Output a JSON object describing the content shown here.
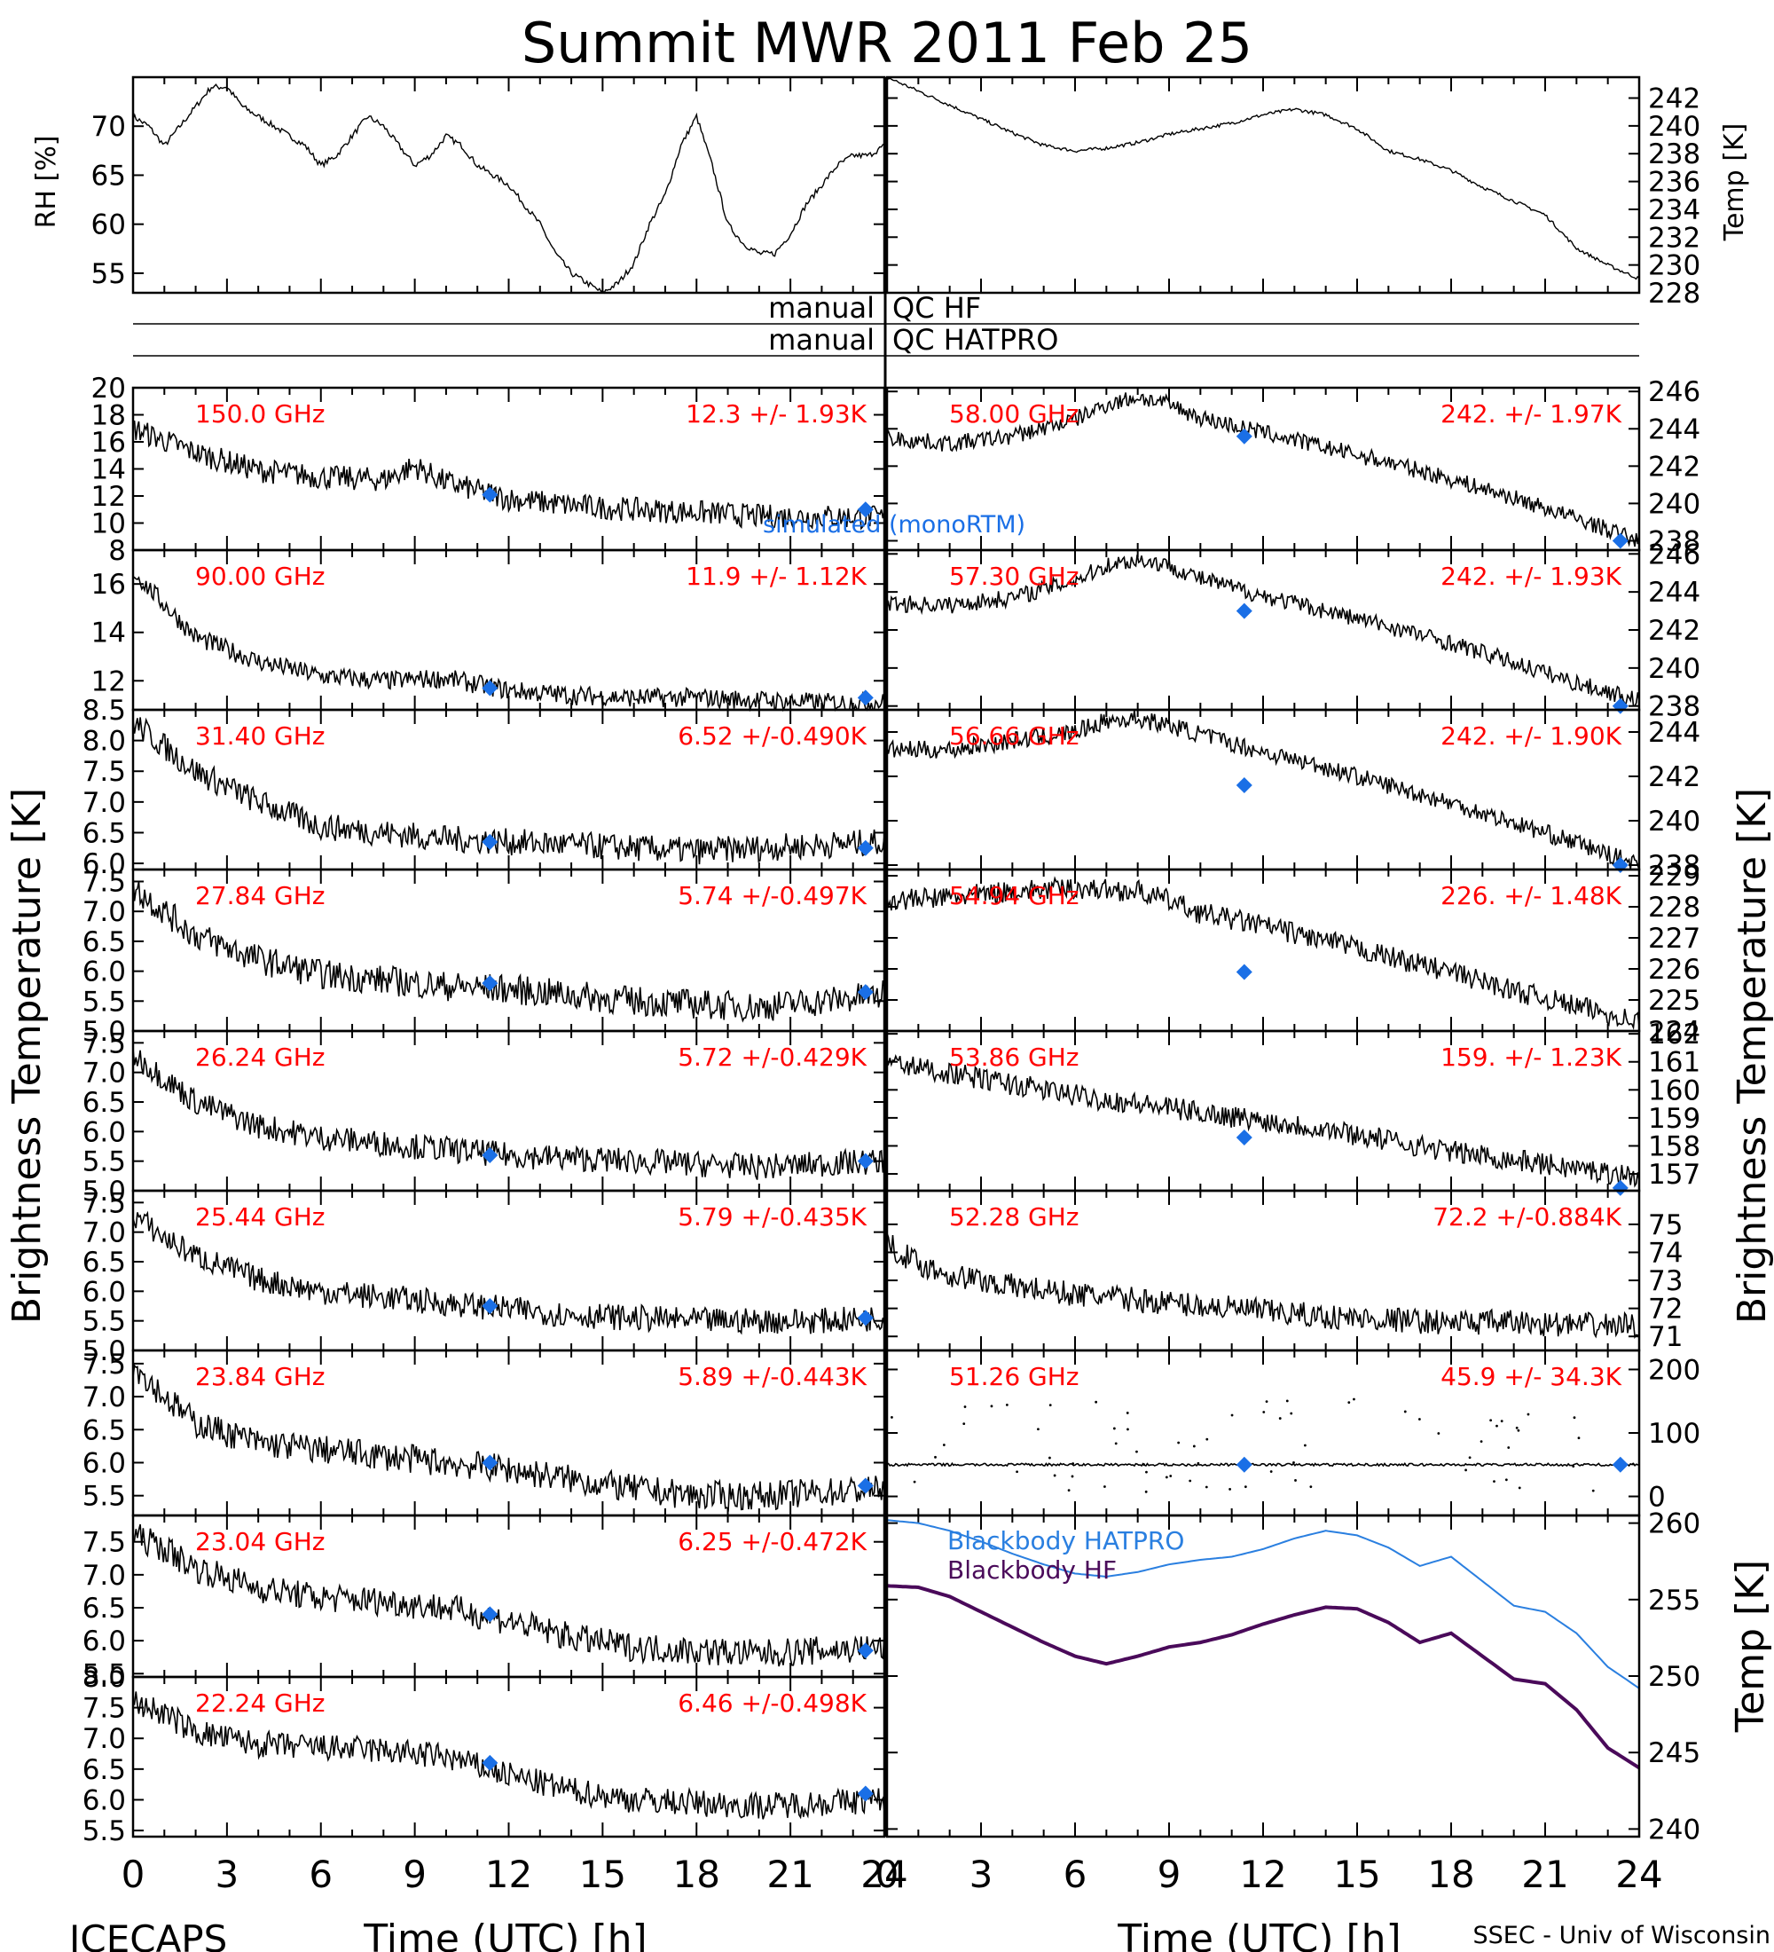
{
  "title": "Summit MWR 2011 Feb 25",
  "footer": {
    "left": "ICECAPS",
    "right": "SSEC - Univ of Wisconsin",
    "xlabel": "Time (UTC) [h]"
  },
  "axis_labels": {
    "rh": "RH [%]",
    "temp": "Temp [K]",
    "bt_left": "Brightness Temperature [K]",
    "bt_right": "Brightness Temperature [K]",
    "bb_temp": "Temp [K]"
  },
  "qc": {
    "hf_left": "manual",
    "hf_right": "QC HF",
    "hatpro_left": "manual",
    "hatpro_right": "QC HATPRO"
  },
  "colors": {
    "label": "#ff0000",
    "marker": "#1a6fe6",
    "hatpro": "#2a7fe0",
    "hf": "#4a0a5a",
    "data": "#000000"
  },
  "chart_data": [
    {
      "type": "line",
      "panel": "rh",
      "series_name": "RH",
      "xlim": [
        0,
        24
      ],
      "ylim": [
        53,
        75
      ],
      "yticks": [
        55,
        60,
        65,
        70
      ],
      "x": [
        0,
        0.5,
        1,
        1.5,
        2,
        2.5,
        3,
        3.5,
        4,
        4.5,
        5,
        5.5,
        6,
        6.5,
        7,
        7.5,
        8,
        8.5,
        9,
        9.5,
        10,
        10.5,
        11,
        11.5,
        12,
        12.5,
        13,
        13.5,
        14,
        14.5,
        15,
        15.5,
        16,
        16.5,
        17,
        17.5,
        18,
        18.5,
        19,
        19.5,
        20,
        20.5,
        21,
        21.5,
        22,
        22.5,
        23,
        23.5,
        24
      ],
      "y": [
        71,
        70,
        68,
        70,
        72,
        74,
        74,
        72,
        71,
        70,
        69,
        68,
        66,
        67,
        69,
        71,
        70,
        68,
        66,
        67,
        69,
        68,
        66,
        65,
        64,
        62,
        60,
        57,
        55,
        54,
        53,
        54,
        56,
        60,
        63,
        68,
        71,
        66,
        60,
        58,
        57,
        57,
        59,
        62,
        64,
        66,
        67,
        67,
        68
      ]
    },
    {
      "type": "line",
      "panel": "temp",
      "series_name": "Temp",
      "xlim": [
        0,
        24
      ],
      "ylim": [
        228,
        243.5
      ],
      "yticks": [
        228,
        230,
        232,
        234,
        236,
        238,
        240,
        242
      ],
      "x": [
        0,
        1,
        2,
        3,
        4,
        5,
        6,
        7,
        8,
        9,
        10,
        11,
        12,
        13,
        14,
        15,
        16,
        17,
        18,
        19,
        20,
        21,
        22,
        23,
        24
      ],
      "y": [
        243.5,
        242.5,
        241.5,
        240.5,
        239.5,
        238.6,
        238.2,
        238.4,
        238.8,
        239.4,
        239.8,
        240.2,
        240.8,
        241.2,
        240.8,
        239.8,
        238.2,
        237.6,
        236.8,
        235.6,
        234.6,
        233.6,
        231.2,
        230.0,
        229.0
      ]
    },
    {
      "type": "line",
      "panel": "bt",
      "column": "left",
      "freq": "150.0 GHz",
      "stats": "12.3 +/- 1.93K",
      "ylim": [
        8,
        20
      ],
      "yticks": [
        8,
        10,
        12,
        14,
        16,
        18,
        20
      ],
      "ytick_decimals": 0,
      "x": [
        0,
        2,
        4,
        6,
        8,
        9,
        10,
        12,
        14,
        16,
        18,
        20,
        22,
        24
      ],
      "y": [
        17,
        15.2,
        13.9,
        13.4,
        13.2,
        14.2,
        13,
        11.8,
        11.3,
        11.0,
        10.8,
        10.5,
        10.5,
        10.4
      ],
      "noise": 0.9,
      "markers": [
        [
          11.4,
          12.1
        ],
        [
          23.4,
          11.0
        ]
      ]
    },
    {
      "type": "line",
      "panel": "bt",
      "column": "left",
      "freq": "90.00 GHz",
      "stats": "11.9 +/- 1.12K",
      "ylim": [
        10.8,
        17.4
      ],
      "yticks": [
        12,
        14,
        16
      ],
      "ytick_decimals": 0,
      "x": [
        0,
        2,
        4,
        6,
        8,
        10,
        12,
        14,
        16,
        18,
        20,
        22,
        24
      ],
      "y": [
        16.5,
        13.8,
        12.8,
        12.2,
        12.0,
        12.1,
        11.6,
        11.4,
        11.3,
        11.3,
        11.2,
        11.1,
        11.1
      ],
      "noise": 0.4,
      "markers": [
        [
          11.4,
          11.7
        ],
        [
          23.4,
          11.3
        ]
      ]
    },
    {
      "type": "line",
      "panel": "bt",
      "column": "left",
      "freq": "31.40 GHz",
      "stats": "6.52 +/-0.490K",
      "ylim": [
        5.9,
        8.5
      ],
      "yticks": [
        6,
        6.5,
        7,
        7.5,
        8,
        8.5
      ],
      "ytick_decimals": 1,
      "x": [
        0,
        1,
        2,
        4,
        6,
        8,
        10,
        12,
        14,
        16,
        18,
        20,
        22,
        24
      ],
      "y": [
        8.3,
        7.9,
        7.5,
        7.0,
        6.6,
        6.5,
        6.4,
        6.35,
        6.3,
        6.25,
        6.2,
        6.25,
        6.3,
        6.35
      ],
      "noise": 0.22,
      "markers": [
        [
          11.4,
          6.35
        ],
        [
          23.4,
          6.25
        ]
      ]
    },
    {
      "type": "line",
      "panel": "bt",
      "column": "left",
      "freq": "27.84 GHz",
      "stats": "5.74 +/-0.497K",
      "ylim": [
        5.0,
        7.7
      ],
      "yticks": [
        5,
        5.5,
        6,
        6.5,
        7,
        7.5
      ],
      "ytick_decimals": 1,
      "x": [
        0,
        1,
        2,
        4,
        6,
        8,
        10,
        12,
        14,
        16,
        18,
        20,
        22,
        24
      ],
      "y": [
        7.4,
        7.0,
        6.6,
        6.2,
        5.95,
        5.85,
        5.75,
        5.7,
        5.6,
        5.5,
        5.45,
        5.4,
        5.5,
        5.6
      ],
      "noise": 0.25,
      "markers": [
        [
          11.4,
          5.8
        ],
        [
          23.4,
          5.65
        ]
      ]
    },
    {
      "type": "line",
      "panel": "bt",
      "column": "left",
      "freq": "26.24 GHz",
      "stats": "5.72 +/-0.429K",
      "ylim": [
        5.0,
        7.7
      ],
      "yticks": [
        5,
        5.5,
        6,
        6.5,
        7,
        7.5
      ],
      "ytick_decimals": 1,
      "x": [
        0,
        1,
        2,
        4,
        6,
        8,
        10,
        12,
        14,
        16,
        18,
        20,
        22,
        24
      ],
      "y": [
        7.3,
        6.9,
        6.5,
        6.1,
        5.9,
        5.8,
        5.7,
        5.6,
        5.55,
        5.5,
        5.45,
        5.4,
        5.45,
        5.5
      ],
      "noise": 0.22,
      "markers": [
        [
          11.4,
          5.6
        ],
        [
          23.4,
          5.5
        ]
      ]
    },
    {
      "type": "line",
      "panel": "bt",
      "column": "left",
      "freq": "25.44 GHz",
      "stats": "5.79 +/-0.435K",
      "ylim": [
        5.0,
        7.7
      ],
      "yticks": [
        5,
        5.5,
        6,
        6.5,
        7,
        7.5
      ],
      "ytick_decimals": 1,
      "x": [
        0,
        1,
        2,
        4,
        6,
        8,
        10,
        12,
        14,
        16,
        18,
        20,
        22,
        24
      ],
      "y": [
        7.3,
        6.9,
        6.6,
        6.2,
        6.0,
        5.9,
        5.8,
        5.7,
        5.6,
        5.55,
        5.5,
        5.5,
        5.5,
        5.55
      ],
      "noise": 0.22,
      "markers": [
        [
          11.4,
          5.75
        ],
        [
          23.4,
          5.55
        ]
      ]
    },
    {
      "type": "line",
      "panel": "bt",
      "column": "left",
      "freq": "23.84 GHz",
      "stats": "5.89 +/-0.443K",
      "ylim": [
        5.2,
        7.7
      ],
      "yticks": [
        5.5,
        6,
        6.5,
        7,
        7.5
      ],
      "ytick_decimals": 1,
      "x": [
        0,
        1,
        2,
        4,
        6,
        8,
        10,
        12,
        14,
        16,
        18,
        20,
        22,
        24
      ],
      "y": [
        7.5,
        7.0,
        6.6,
        6.3,
        6.2,
        6.1,
        6.0,
        5.9,
        5.75,
        5.6,
        5.5,
        5.5,
        5.55,
        5.6
      ],
      "noise": 0.22,
      "markers": [
        [
          11.4,
          6.0
        ],
        [
          23.4,
          5.65
        ]
      ]
    },
    {
      "type": "line",
      "panel": "bt",
      "column": "left",
      "freq": "23.04 GHz",
      "stats": "6.25 +/-0.472K",
      "ylim": [
        5.45,
        7.9
      ],
      "yticks": [
        5.5,
        6,
        6.5,
        7,
        7.5
      ],
      "ytick_decimals": 1,
      "x": [
        0,
        1,
        2,
        4,
        6,
        8,
        10,
        12,
        14,
        16,
        18,
        20,
        22,
        24
      ],
      "y": [
        7.6,
        7.4,
        7.1,
        6.8,
        6.65,
        6.6,
        6.5,
        6.3,
        6.05,
        5.9,
        5.85,
        5.8,
        5.85,
        5.9
      ],
      "noise": 0.22,
      "markers": [
        [
          11.4,
          6.4
        ],
        [
          23.4,
          5.85
        ]
      ]
    },
    {
      "type": "line",
      "panel": "bt",
      "column": "left",
      "freq": "22.24 GHz",
      "stats": "6.46 +/-0.498K",
      "ylim": [
        5.4,
        8.0
      ],
      "yticks": [
        5.5,
        6,
        6.5,
        7,
        7.5,
        8
      ],
      "ytick_decimals": 1,
      "x": [
        0,
        1,
        2,
        4,
        6,
        8,
        10,
        12,
        14,
        16,
        18,
        20,
        22,
        24
      ],
      "y": [
        7.6,
        7.4,
        7.1,
        6.9,
        6.85,
        6.8,
        6.7,
        6.4,
        6.15,
        6.0,
        5.95,
        5.9,
        5.95,
        6.0
      ],
      "noise": 0.22,
      "markers": [
        [
          11.4,
          6.6
        ],
        [
          23.4,
          6.1
        ]
      ]
    },
    {
      "type": "line",
      "panel": "bt",
      "column": "right",
      "freq": "58.00 GHz",
      "stats": "242. +/- 1.97K",
      "ylim": [
        237.5,
        246.2
      ],
      "yticks": [
        238,
        240,
        242,
        244,
        246
      ],
      "ytick_decimals": 0,
      "x": [
        0,
        2,
        4,
        6,
        7,
        8,
        9,
        10,
        12,
        14,
        16,
        18,
        20,
        22,
        24
      ],
      "y": [
        243.5,
        243.2,
        243.6,
        244.5,
        245.3,
        245.7,
        245.3,
        244.6,
        243.8,
        243.0,
        242.2,
        241.3,
        240.3,
        239.2,
        238.0
      ],
      "noise": 0.45,
      "markers": [
        [
          11.4,
          243.6
        ],
        [
          23.4,
          238.0
        ]
      ]
    },
    {
      "type": "line",
      "panel": "bt",
      "column": "right",
      "freq": "57.30 GHz",
      "stats": "242. +/- 1.93K",
      "ylim": [
        237.8,
        246.2
      ],
      "yticks": [
        238,
        240,
        242,
        244,
        246
      ],
      "ytick_decimals": 0,
      "x": [
        0,
        2,
        4,
        6,
        7,
        8,
        9,
        10,
        12,
        14,
        16,
        18,
        20,
        22,
        24
      ],
      "y": [
        243.4,
        243.3,
        243.7,
        244.6,
        245.4,
        245.7,
        245.4,
        244.7,
        243.8,
        243.0,
        242.2,
        241.3,
        240.3,
        239.2,
        238.3
      ],
      "noise": 0.45,
      "markers": [
        [
          11.4,
          243.0
        ],
        [
          23.4,
          238.0
        ]
      ]
    },
    {
      "type": "line",
      "panel": "bt",
      "column": "right",
      "freq": "56.66 GHz",
      "stats": "242. +/- 1.90K",
      "ylim": [
        237.8,
        245.0
      ],
      "yticks": [
        238,
        240,
        242,
        244
      ],
      "ytick_decimals": 0,
      "x": [
        0,
        2,
        4,
        6,
        7,
        8,
        9,
        10,
        12,
        14,
        16,
        18,
        20,
        22,
        24
      ],
      "y": [
        243.2,
        243.2,
        243.6,
        244.0,
        244.5,
        244.6,
        244.3,
        243.9,
        243.1,
        242.4,
        241.6,
        240.8,
        239.9,
        239.0,
        238.0
      ],
      "noise": 0.4,
      "markers": [
        [
          11.4,
          241.6
        ],
        [
          23.4,
          238.0
        ]
      ]
    },
    {
      "type": "line",
      "panel": "bt",
      "column": "right",
      "freq": "54.94 GHz",
      "stats": "226. +/- 1.48K",
      "ylim": [
        224,
        229.2
      ],
      "yticks": [
        224,
        225,
        226,
        227,
        228,
        229
      ],
      "ytick_decimals": 0,
      "x": [
        0,
        2,
        4,
        6,
        8,
        9,
        10,
        12,
        14,
        16,
        18,
        20,
        22,
        24
      ],
      "y": [
        228.2,
        228.3,
        228.5,
        228.6,
        228.5,
        228.2,
        227.8,
        227.4,
        226.9,
        226.4,
        225.9,
        225.3,
        224.8,
        224.3
      ],
      "noise": 0.35,
      "markers": [
        [
          11.4,
          225.9
        ]
      ]
    },
    {
      "type": "line",
      "panel": "bt",
      "column": "right",
      "freq": "53.86 GHz",
      "stats": "159. +/- 1.23K",
      "ylim": [
        156.4,
        162.1
      ],
      "yticks": [
        157,
        158,
        159,
        160,
        161,
        162
      ],
      "ytick_decimals": 0,
      "x": [
        0,
        2,
        4,
        6,
        8,
        10,
        12,
        14,
        16,
        18,
        20,
        22,
        24
      ],
      "y": [
        161.0,
        160.6,
        160.2,
        159.8,
        159.5,
        159.2,
        158.9,
        158.6,
        158.2,
        157.8,
        157.5,
        157.2,
        156.9
      ],
      "noise": 0.4,
      "markers": [
        [
          11.4,
          158.3
        ],
        [
          23.4,
          156.5
        ]
      ]
    },
    {
      "type": "line",
      "panel": "bt",
      "column": "right",
      "freq": "52.28 GHz",
      "stats": "72.2 +/-0.884K",
      "ylim": [
        70.5,
        76.2
      ],
      "yticks": [
        71,
        72,
        73,
        74,
        75
      ],
      "ytick_decimals": 0,
      "x": [
        0,
        1,
        2,
        4,
        6,
        8,
        10,
        12,
        14,
        16,
        18,
        20,
        22,
        24
      ],
      "y": [
        74.3,
        73.6,
        73.2,
        72.8,
        72.5,
        72.3,
        72.1,
        71.9,
        71.7,
        71.6,
        71.5,
        71.5,
        71.4,
        71.4
      ],
      "noise": 0.45,
      "markers": []
    },
    {
      "type": "scatter",
      "panel": "bt",
      "column": "right",
      "freq": "51.26 GHz",
      "stats": "45.9 +/- 34.3K",
      "ylim": [
        -30,
        230
      ],
      "yticks": [
        0,
        100,
        200
      ],
      "ytick_decimals": 0,
      "x": [
        0,
        24
      ],
      "y": [
        50,
        50
      ],
      "noise": 2,
      "spikes": true,
      "markers": [
        [
          11.4,
          50
        ],
        [
          23.4,
          50
        ]
      ]
    },
    {
      "type": "line",
      "panel": "blackbody",
      "ylim": [
        239.5,
        260.5
      ],
      "yticks": [
        240,
        245,
        250,
        255,
        260
      ],
      "series": [
        {
          "name": "Blackbody HATPRO",
          "x": [
            0,
            1,
            2,
            3,
            4,
            5,
            6,
            7,
            8,
            9,
            10,
            11,
            12,
            13,
            14,
            15,
            16,
            17,
            18,
            19,
            20,
            21,
            22,
            23,
            24
          ],
          "y": [
            260.2,
            260.0,
            259.5,
            258.8,
            258.0,
            257.3,
            256.7,
            256.5,
            256.8,
            257.3,
            257.6,
            257.8,
            258.3,
            259.0,
            259.5,
            259.2,
            258.4,
            257.2,
            257.8,
            256.2,
            254.6,
            254.2,
            252.8,
            250.6,
            249.2
          ]
        },
        {
          "name": "Blackbody HF",
          "x": [
            0,
            1,
            2,
            3,
            4,
            5,
            6,
            7,
            8,
            9,
            10,
            11,
            12,
            13,
            14,
            15,
            16,
            17,
            18,
            19,
            20,
            21,
            22,
            23,
            24
          ],
          "y": [
            255.9,
            255.8,
            255.2,
            254.2,
            253.2,
            252.2,
            251.3,
            250.8,
            251.3,
            251.9,
            252.2,
            252.7,
            253.4,
            254.0,
            254.5,
            254.4,
            253.5,
            252.2,
            252.8,
            251.3,
            249.8,
            249.5,
            247.8,
            245.3,
            244.0
          ]
        }
      ]
    }
  ],
  "x_ticks": [
    0,
    3,
    6,
    9,
    12,
    15,
    18,
    21,
    24
  ]
}
